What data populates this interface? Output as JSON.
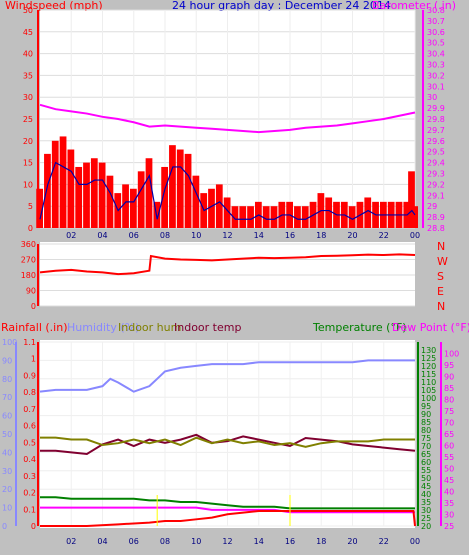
{
  "colors": {
    "windspeed": "#ff0000",
    "windavg": "#0000aa",
    "barometer": "#ff00ff",
    "winddir": "#ff0000",
    "rainfall": "#ff0000",
    "humidity": "#8888ff",
    "indoor_hum": "#808000",
    "indoor_temp": "#800030",
    "temperature": "#008000",
    "dewpoint": "#ff00ff",
    "title": "#0000cc",
    "bg": "#c0c0c0",
    "plot_bg": "#ffffff",
    "marker": "#ffff00"
  },
  "chart_data": [
    {
      "type": "line",
      "title": "24 hour graph day : December 24 2014",
      "ylabel_left": "Windspeed (mph)",
      "ylabel_right": "Barometer (.in)",
      "xticks": [
        "02",
        "04",
        "06",
        "08",
        "10",
        "12",
        "14",
        "16",
        "18",
        "20",
        "22",
        "00"
      ],
      "x_hours_range": [
        0,
        24
      ],
      "ylim_left": [
        0,
        50
      ],
      "yticks_left": [
        0,
        5,
        10,
        15,
        20,
        25,
        30,
        35,
        40,
        45,
        50
      ],
      "ylim_right": [
        28.8,
        30.8
      ],
      "yticks_right": [
        "28.8",
        "28.9",
        "29",
        "29.1",
        "29.2",
        "29.3",
        "29.4",
        "29.5",
        "29.6",
        "29.7",
        "29.8",
        "29.9",
        "30",
        "30.1",
        "30.2",
        "30.3",
        "30.4",
        "30.5",
        "30.6",
        "30.7",
        "30.8"
      ],
      "series": [
        {
          "name": "Windspeed (mph)",
          "axis": "left",
          "style": "bars",
          "x": [
            0,
            0.5,
            1,
            1.5,
            2,
            2.5,
            3,
            3.5,
            4,
            4.5,
            5,
            5.5,
            6,
            6.5,
            7,
            7.5,
            8,
            8.5,
            9,
            9.5,
            10,
            10.5,
            11,
            11.5,
            12,
            12.5,
            13,
            13.5,
            14,
            14.5,
            15,
            15.5,
            16,
            16.5,
            17,
            17.5,
            18,
            18.5,
            19,
            19.5,
            20,
            20.5,
            21,
            21.5,
            22,
            22.5,
            23,
            23.5,
            23.8,
            24
          ],
          "values": [
            9,
            17,
            20,
            21,
            18,
            14,
            15,
            16,
            15,
            12,
            8,
            10,
            9,
            13,
            16,
            6,
            14,
            19,
            18,
            17,
            12,
            8,
            9,
            10,
            7,
            5,
            5,
            5,
            6,
            5,
            5,
            6,
            6,
            5,
            5,
            6,
            8,
            7,
            6,
            6,
            5,
            6,
            7,
            6,
            6,
            6,
            6,
            6,
            13,
            5
          ]
        },
        {
          "name": "Wind avg",
          "axis": "left",
          "x": [
            0,
            0.5,
            1,
            1.5,
            2,
            2.5,
            3,
            3.5,
            4,
            4.5,
            5,
            5.5,
            6,
            6.5,
            7,
            7.5,
            8,
            8.5,
            9,
            9.5,
            10,
            10.5,
            11,
            11.5,
            12,
            12.5,
            13,
            13.5,
            14,
            14.5,
            15,
            15.5,
            16,
            16.5,
            17,
            17.5,
            18,
            18.5,
            19,
            19.5,
            20,
            20.5,
            21,
            21.5,
            22,
            22.5,
            23,
            23.5,
            23.8,
            24
          ],
          "values": [
            2,
            10,
            15,
            14,
            13,
            10,
            10,
            11,
            11,
            8,
            4,
            6,
            6,
            9,
            12,
            2,
            9,
            14,
            14,
            12,
            8,
            4,
            5,
            6,
            4,
            2,
            2,
            2,
            3,
            2,
            2,
            3,
            3,
            2,
            2,
            3,
            4,
            4,
            3,
            3,
            2,
            3,
            4,
            3,
            3,
            3,
            3,
            3,
            4,
            3
          ]
        },
        {
          "name": "Barometer (.in)",
          "axis": "right",
          "x": [
            0,
            1,
            2,
            3,
            4,
            5,
            6,
            7,
            8,
            9,
            10,
            11,
            12,
            13,
            14,
            15,
            16,
            17,
            18,
            19,
            20,
            21,
            22,
            23,
            24
          ],
          "values": [
            29.93,
            29.89,
            29.87,
            29.85,
            29.82,
            29.8,
            29.77,
            29.73,
            29.74,
            29.73,
            29.72,
            29.71,
            29.7,
            29.69,
            29.68,
            29.69,
            29.7,
            29.72,
            29.73,
            29.74,
            29.76,
            29.78,
            29.8,
            29.83,
            29.86
          ]
        }
      ]
    },
    {
      "type": "line",
      "title": "",
      "ylim": [
        0,
        360
      ],
      "yticks": [
        0,
        90,
        180,
        270,
        360
      ],
      "direction_labels": [
        "N",
        "W",
        "S",
        "E",
        "N"
      ],
      "series": [
        {
          "name": "Wind direction",
          "axis": "left",
          "x": [
            0,
            1,
            2,
            3,
            4,
            5,
            6,
            7,
            7.1,
            8,
            9,
            10,
            11,
            12,
            13,
            14,
            15,
            16,
            17,
            18,
            19,
            20,
            21,
            22,
            23,
            24
          ],
          "values": [
            195,
            205,
            210,
            200,
            195,
            185,
            190,
            205,
            290,
            275,
            270,
            268,
            265,
            270,
            275,
            280,
            278,
            280,
            283,
            290,
            292,
            295,
            298,
            296,
            300,
            296
          ]
        }
      ]
    },
    {
      "type": "line",
      "title": "",
      "legend": [
        "Rainfall (.in)",
        "Humidity (%)",
        "Indoor hum",
        "Indoor temp",
        "Temperature (°F)",
        "Dew Point (°F)"
      ],
      "ylim_rain": [
        0,
        1.1
      ],
      "yticks_rain": [
        "0",
        "0.1",
        "0.2",
        "0.3",
        "0.4",
        "0.5",
        "0.6",
        "0.7",
        "0.8",
        "0.9",
        "1",
        "1.1"
      ],
      "ylim_hum": [
        0,
        100
      ],
      "yticks_hum": [
        0,
        10,
        20,
        30,
        40,
        50,
        60,
        70,
        80,
        90,
        100
      ],
      "ylim_temp": [
        20,
        135
      ],
      "yticks_temp": [
        20,
        25,
        30,
        35,
        40,
        45,
        50,
        55,
        60,
        65,
        70,
        75,
        80,
        85,
        90,
        95,
        100,
        105,
        110,
        115,
        120,
        125,
        130
      ],
      "ylim_dew": [
        25,
        105
      ],
      "yticks_dew": [
        25,
        30,
        35,
        40,
        45,
        50,
        55,
        60,
        65,
        70,
        75,
        80,
        85,
        90,
        95,
        100
      ],
      "series": [
        {
          "name": "Humidity (%)",
          "axis": "hum",
          "x": [
            0,
            1,
            2,
            3,
            4,
            4.5,
            5,
            6,
            7,
            7.5,
            8,
            9,
            10,
            11,
            12,
            13,
            14,
            15,
            16,
            17,
            18,
            19,
            20,
            21,
            22,
            23,
            24
          ],
          "values": [
            73,
            74,
            74,
            74,
            76,
            80,
            78,
            73,
            76,
            80,
            84,
            86,
            87,
            88,
            88,
            88,
            89,
            89,
            89,
            89,
            89,
            89,
            89,
            90,
            90,
            90,
            90
          ]
        },
        {
          "name": "Indoor temp",
          "axis": "temp",
          "x": [
            0,
            1,
            2,
            3,
            4,
            5,
            6,
            7,
            8,
            9,
            10,
            11,
            12,
            13,
            14,
            15,
            16,
            17,
            18,
            19,
            20,
            21,
            22,
            23,
            24
          ],
          "values": [
            67,
            67,
            66,
            65,
            71,
            74,
            70,
            74,
            72,
            74,
            77,
            72,
            73,
            76,
            74,
            72,
            70,
            75,
            74,
            73,
            71,
            70,
            69,
            68,
            67
          ]
        },
        {
          "name": "Indoor hum",
          "axis": "hum",
          "x": [
            0,
            1,
            2,
            3,
            4,
            5,
            6,
            7,
            8,
            9,
            10,
            11,
            12,
            13,
            14,
            15,
            16,
            17,
            18,
            19,
            20,
            21,
            22,
            23,
            24
          ],
          "values": [
            48,
            48,
            47,
            47,
            44,
            45,
            47,
            45,
            47,
            44,
            48,
            45,
            47,
            45,
            46,
            44,
            45,
            43,
            45,
            46,
            46,
            46,
            47,
            47,
            47
          ]
        },
        {
          "name": "Temperature (°F)",
          "axis": "temp",
          "x": [
            0,
            1,
            2,
            3,
            4,
            5,
            6,
            7,
            8,
            9,
            10,
            11,
            12,
            13,
            14,
            15,
            16,
            17,
            18,
            19,
            20,
            21,
            22,
            23,
            24
          ],
          "values": [
            38,
            38,
            37,
            37,
            37,
            37,
            37,
            36,
            36,
            35,
            35,
            34,
            33,
            32,
            32,
            32,
            31,
            31,
            31,
            31,
            31,
            31,
            31,
            31,
            31
          ]
        },
        {
          "name": "Dew Point (°F)",
          "axis": "dew",
          "x": [
            0,
            1,
            2,
            3,
            4,
            5,
            6,
            7,
            8,
            9,
            10,
            11,
            12,
            13,
            14,
            15,
            16,
            17,
            18,
            19,
            20,
            21,
            22,
            23,
            24
          ],
          "values": [
            33,
            33,
            33,
            33,
            33,
            33,
            33,
            33,
            33,
            33,
            33,
            32,
            32,
            32,
            32,
            32,
            31,
            31,
            31,
            31,
            31,
            31,
            31,
            31,
            31
          ]
        },
        {
          "name": "Rainfall (.in)",
          "axis": "rain",
          "x": [
            0,
            3,
            5,
            7,
            8,
            9,
            10,
            11,
            12,
            13,
            14,
            15,
            16,
            17,
            18,
            19,
            20,
            21,
            22,
            23,
            23.9,
            24
          ],
          "values": [
            0,
            0,
            0.01,
            0.02,
            0.03,
            0.03,
            0.04,
            0.05,
            0.07,
            0.08,
            0.09,
            0.09,
            0.09,
            0.09,
            0.09,
            0.09,
            0.09,
            0.09,
            0.09,
            0.09,
            0.09,
            0
          ]
        }
      ]
    }
  ]
}
